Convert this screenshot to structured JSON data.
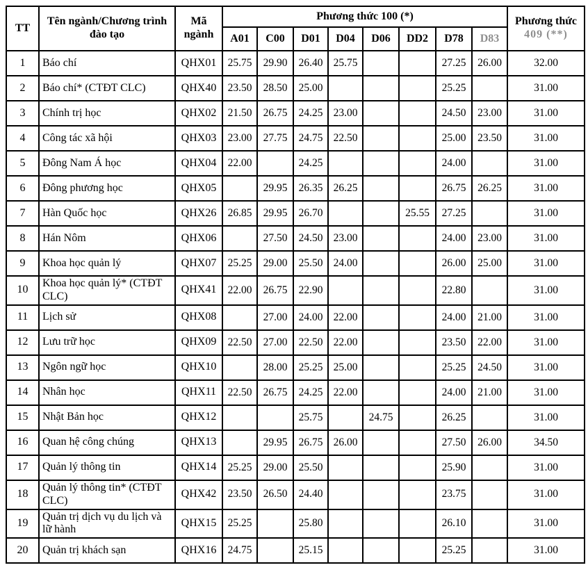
{
  "colors": {
    "border": "#000000",
    "text": "#000000",
    "faded_watermark_text": "#8e8e8e",
    "background": "#ffffff"
  },
  "table": {
    "headers": {
      "tt": "TT",
      "program": "Tên ngành/Chương trình đào tạo",
      "code": "Mã ngành",
      "pt100": "Phương thức 100 (*)",
      "pt409_line1": "Phương thức",
      "pt409_line2": "409 (**)",
      "sub": [
        "A01",
        "C00",
        "D01",
        "D04",
        "D06",
        "DD2",
        "D78",
        "D83"
      ]
    },
    "rows": [
      {
        "tt": "1",
        "name": "Báo chí",
        "code": "QHX01",
        "scores": [
          "25.75",
          "29.90",
          "26.40",
          "25.75",
          "",
          "",
          "27.25",
          "26.00"
        ],
        "pt409": "32.00"
      },
      {
        "tt": "2",
        "name": "Báo chí* (CTĐT CLC)",
        "code": "QHX40",
        "scores": [
          "23.50",
          "28.50",
          "25.00",
          "",
          "",
          "",
          "25.25",
          ""
        ],
        "pt409": "31.00"
      },
      {
        "tt": "3",
        "name": "Chính trị học",
        "code": "QHX02",
        "scores": [
          "21.50",
          "26.75",
          "24.25",
          "23.00",
          "",
          "",
          "24.50",
          "23.00"
        ],
        "pt409": "31.00"
      },
      {
        "tt": "4",
        "name": "Công tác xã hội",
        "code": "QHX03",
        "scores": [
          "23.00",
          "27.75",
          "24.75",
          "22.50",
          "",
          "",
          "25.00",
          "23.50"
        ],
        "pt409": "31.00"
      },
      {
        "tt": "5",
        "name": "Đông Nam Á học",
        "code": "QHX04",
        "scores": [
          "22.00",
          "",
          "24.25",
          "",
          "",
          "",
          "24.00",
          ""
        ],
        "pt409": "31.00"
      },
      {
        "tt": "6",
        "name": "Đông phương học",
        "code": "QHX05",
        "scores": [
          "",
          "29.95",
          "26.35",
          "26.25",
          "",
          "",
          "26.75",
          "26.25"
        ],
        "pt409": "31.00"
      },
      {
        "tt": "7",
        "name": "Hàn Quốc học",
        "code": "QHX26",
        "scores": [
          "26.85",
          "29.95",
          "26.70",
          "",
          "",
          "25.55",
          "27.25",
          ""
        ],
        "pt409": "31.00"
      },
      {
        "tt": "8",
        "name": "Hán Nôm",
        "code": "QHX06",
        "scores": [
          "",
          "27.50",
          "24.50",
          "23.00",
          "",
          "",
          "24.00",
          "23.00"
        ],
        "pt409": "31.00"
      },
      {
        "tt": "9",
        "name": "Khoa học quản lý",
        "code": "QHX07",
        "scores": [
          "25.25",
          "29.00",
          "25.50",
          "24.00",
          "",
          "",
          "26.00",
          "25.00"
        ],
        "pt409": "31.00"
      },
      {
        "tt": "10",
        "name": "Khoa học quản lý* (CTĐT CLC)",
        "code": "QHX41",
        "scores": [
          "22.00",
          "26.75",
          "22.90",
          "",
          "",
          "",
          "22.80",
          ""
        ],
        "pt409": "31.00"
      },
      {
        "tt": "11",
        "name": "Lịch sử",
        "code": "QHX08",
        "scores": [
          "",
          "27.00",
          "24.00",
          "22.00",
          "",
          "",
          "24.00",
          "21.00"
        ],
        "pt409": "31.00"
      },
      {
        "tt": "12",
        "name": "Lưu trữ học",
        "code": "QHX09",
        "scores": [
          "22.50",
          "27.00",
          "22.50",
          "22.00",
          "",
          "",
          "23.50",
          "22.00"
        ],
        "pt409": "31.00"
      },
      {
        "tt": "13",
        "name": "Ngôn ngữ học",
        "code": "QHX10",
        "scores": [
          "",
          "28.00",
          "25.25",
          "25.00",
          "",
          "",
          "25.25",
          "24.50"
        ],
        "pt409": "31.00"
      },
      {
        "tt": "14",
        "name": "Nhân học",
        "code": "QHX11",
        "scores": [
          "22.50",
          "26.75",
          "24.25",
          "22.00",
          "",
          "",
          "24.00",
          "21.00"
        ],
        "pt409": "31.00"
      },
      {
        "tt": "15",
        "name": "Nhật Bản học",
        "code": "QHX12",
        "scores": [
          "",
          "",
          "25.75",
          "",
          "24.75",
          "",
          "26.25",
          ""
        ],
        "pt409": "31.00"
      },
      {
        "tt": "16",
        "name": "Quan hệ công chúng",
        "code": "QHX13",
        "scores": [
          "",
          "29.95",
          "26.75",
          "26.00",
          "",
          "",
          "27.50",
          "26.00"
        ],
        "pt409": "34.50"
      },
      {
        "tt": "17",
        "name": "Quản lý thông tin",
        "code": "QHX14",
        "scores": [
          "25.25",
          "29.00",
          "25.50",
          "",
          "",
          "",
          "25.90",
          ""
        ],
        "pt409": "31.00"
      },
      {
        "tt": "18",
        "name": "Quản lý thông tin* (CTĐT CLC)",
        "code": "QHX42",
        "scores": [
          "23.50",
          "26.50",
          "24.40",
          "",
          "",
          "",
          "23.75",
          ""
        ],
        "pt409": "31.00"
      },
      {
        "tt": "19",
        "name": "Quản trị dịch vụ du lịch và lữ hành",
        "code": "QHX15",
        "scores": [
          "25.25",
          "",
          "25.80",
          "",
          "",
          "",
          "26.10",
          ""
        ],
        "pt409": "31.00"
      },
      {
        "tt": "20",
        "name": "Quản trị khách sạn",
        "code": "QHX16",
        "scores": [
          "24.75",
          "",
          "25.15",
          "",
          "",
          "",
          "25.25",
          ""
        ],
        "pt409": "31.00"
      }
    ]
  }
}
